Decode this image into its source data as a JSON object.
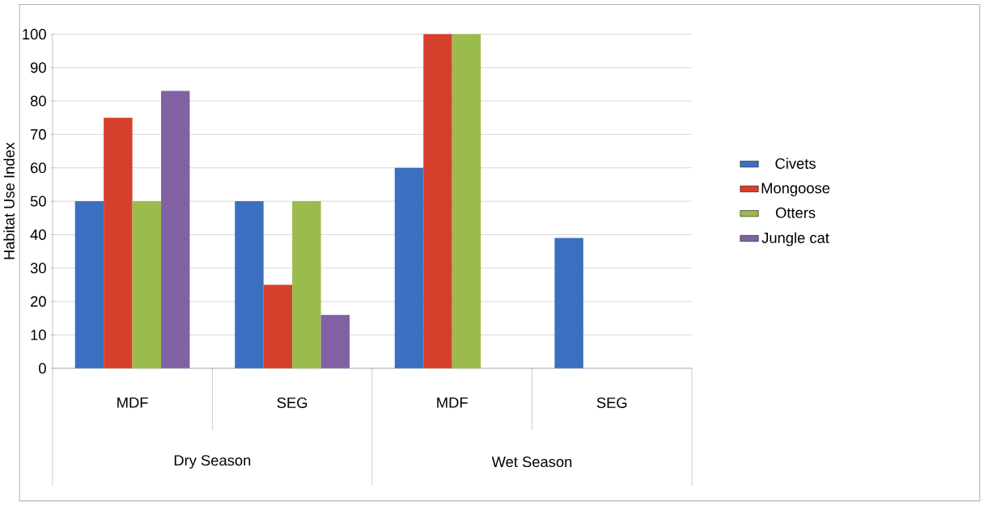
{
  "chart_data": {
    "type": "bar",
    "ylabel": "Habitat Use Index",
    "categories": [
      "MDF",
      "SEG",
      "MDF",
      "SEG"
    ],
    "annotations": [
      "Dry Season",
      "Wet Season"
    ],
    "series": [
      {
        "name": "Civets",
        "color": "#3c6fc0",
        "values": [
          50,
          50,
          60,
          39
        ]
      },
      {
        "name": "Mongoose",
        "color": "#d5402d",
        "values": [
          75,
          25,
          100,
          0
        ]
      },
      {
        "name": "Otters",
        "color": "#9bbb4f",
        "values": [
          50,
          50,
          100,
          0
        ]
      },
      {
        "name": "Jungle cat",
        "color": "#8062a4",
        "values": [
          83,
          16,
          0,
          0
        ]
      }
    ],
    "ylim": [
      0,
      100
    ],
    "yticks": [
      0,
      10,
      20,
      30,
      40,
      50,
      60,
      70,
      80,
      90,
      100
    ],
    "grid": "y",
    "legend": "right"
  }
}
